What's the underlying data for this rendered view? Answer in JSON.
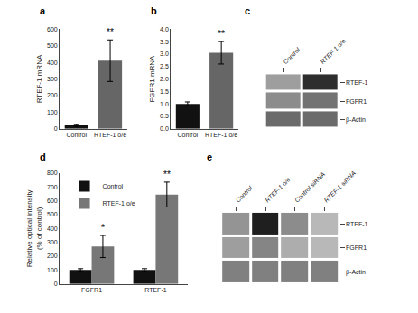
{
  "chart_data": [
    {
      "type": "bar",
      "title": "a",
      "categories": [
        "Control",
        "RTEF-1 o/e"
      ],
      "values": [
        20,
        410
      ],
      "errors": [
        5,
        125
      ],
      "colors": [
        "#111111",
        "#666666"
      ],
      "ylabel": "RTEF-1 mRNA",
      "ylim": [
        0,
        600
      ],
      "yticks": [
        0,
        100,
        200,
        300,
        400,
        500,
        600
      ],
      "grid": false,
      "annotations": [
        {
          "category": "RTEF-1 o/e",
          "text": "**"
        }
      ]
    },
    {
      "type": "bar",
      "title": "b",
      "categories": [
        "Control",
        "RTEF-1 o/e"
      ],
      "values": [
        1.0,
        3.05
      ],
      "errors": [
        0.08,
        0.45
      ],
      "colors": [
        "#111111",
        "#666666"
      ],
      "ylabel": "FGFR1 mRNA",
      "ylim": [
        0,
        4.0
      ],
      "yticks": [
        {
          "value": 0,
          "label": "0.0"
        },
        0.5,
        {
          "value": 1,
          "label": "1.0"
        },
        1.5,
        {
          "value": 2,
          "label": "2.0"
        },
        2.5,
        {
          "value": 3,
          "label": "3.0"
        },
        3.5,
        {
          "value": 4,
          "label": "4.0"
        }
      ],
      "grid": false,
      "annotations": [
        {
          "category": "RTEF-1 o/e",
          "text": "**"
        }
      ]
    },
    {
      "type": "heatmap",
      "title": "c",
      "categories": [
        "Control",
        "RTEF-1 o/e"
      ],
      "rows": [
        "RTEF-1",
        "FGFR1",
        "β-Actin"
      ],
      "cells": [
        [
          0.62,
          0.18
        ],
        [
          0.55,
          0.45
        ],
        [
          0.42,
          0.42
        ]
      ],
      "zlim": [
        0,
        1
      ]
    },
    {
      "type": "bar",
      "title": "d",
      "categories": [
        "FGFR1",
        "RTEF-1"
      ],
      "series": [
        {
          "name": "Control",
          "color": "#111111",
          "values": [
            100,
            100
          ],
          "errors": [
            10,
            10
          ]
        },
        {
          "name": "RTEF-1 o/e",
          "color": "#777777",
          "values": [
            270,
            645
          ],
          "errors": [
            80,
            90
          ]
        }
      ],
      "ylabel": "Relative optical intensity\n(% of control)",
      "ylim": [
        0,
        800
      ],
      "yticks": [
        0,
        100,
        200,
        300,
        400,
        500,
        600,
        700,
        800
      ],
      "grid": false,
      "legend": "upper left",
      "annotations": [
        {
          "category": "FGFR1",
          "series": "RTEF-1 o/e",
          "text": "*"
        },
        {
          "category": "RTEF-1",
          "series": "RTEF-1 o/e",
          "text": "**"
        }
      ]
    },
    {
      "type": "heatmap",
      "title": "e",
      "categories": [
        "Control",
        "RTEF-1 o/e",
        "Control siRNA",
        "RTEF-1 siRNA"
      ],
      "rows": [
        "RTEF-1",
        "FGFR1",
        "β-Actin"
      ],
      "cells": [
        [
          0.58,
          0.12,
          0.55,
          0.72
        ],
        [
          0.62,
          0.52,
          0.68,
          0.72
        ],
        [
          0.5,
          0.5,
          0.5,
          0.5
        ]
      ],
      "zlim": [
        0,
        1
      ]
    }
  ]
}
